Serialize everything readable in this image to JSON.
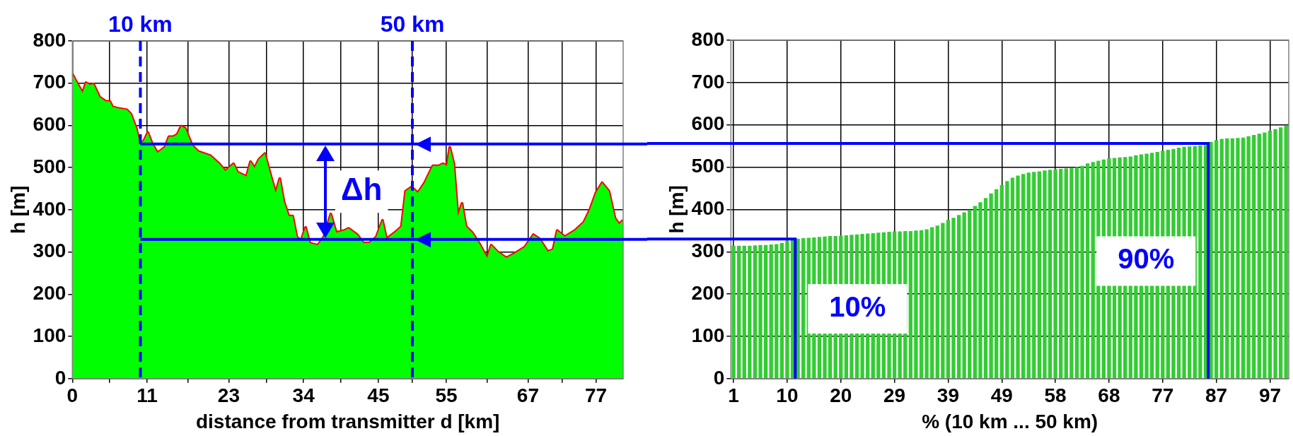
{
  "chart_data": [
    {
      "type": "area",
      "xlabel": "distance from transmitter d [km]",
      "ylabel": "h [m]",
      "x": [
        0,
        0.5,
        1.5,
        2,
        2.6,
        3.1,
        4,
        4.9,
        5.5,
        5.9,
        6.8,
        8,
        8.6,
        9.4,
        9.9,
        10.5,
        11.1,
        11.7,
        12.5,
        13.6,
        14.2,
        14.8,
        15.4,
        16,
        16.6,
        17.6,
        18.5,
        19.4,
        20.3,
        21.6,
        22.5,
        23.7,
        24.3,
        25.6,
        26.2,
        26.8,
        27.4,
        28.3,
        29.3,
        29.9,
        30.5,
        31.1,
        31.8,
        32.4,
        33,
        33.6,
        34.3,
        34.9,
        36.1,
        37,
        38,
        38.8,
        40,
        40.6,
        41.9,
        42.8,
        43.7,
        44.7,
        45.6,
        46.2,
        47.4,
        48.4,
        49,
        49.9,
        50.8,
        51.8,
        53,
        53.9,
        54.5,
        55.1,
        55.5,
        56.1,
        56.7,
        57.3,
        57.9,
        58.8,
        59.8,
        61,
        61.6,
        62.5,
        63.8,
        65,
        66.5,
        67.8,
        68.7,
        69.9,
        70.7,
        71.3,
        72.4,
        73.9,
        75.2,
        76.1,
        77,
        77.9,
        78.9,
        79.8,
        80.4,
        81
      ],
      "series": [
        {
          "type": "area",
          "color": "#00ff00",
          "values": [
            721,
            706,
            677,
            701,
            696,
            698,
            667,
            657,
            657,
            644,
            640,
            637,
            627,
            593,
            558,
            563,
            583,
            558,
            535,
            548,
            573,
            573,
            578,
            598,
            593,
            553,
            538,
            533,
            528,
            509,
            492,
            509,
            489,
            479,
            514,
            499,
            519,
            533,
            474,
            440,
            474,
            420,
            385,
            385,
            336,
            326,
            358,
            321,
            316,
            336,
            390,
            346,
            351,
            356,
            341,
            321,
            321,
            336,
            375,
            331,
            346,
            360,
            444,
            454,
            440,
            464,
            504,
            504,
            509,
            504,
            548,
            509,
            385,
            415,
            360,
            346,
            321,
            286,
            316,
            301,
            286,
            296,
            311,
            341,
            331,
            301,
            306,
            351,
            336,
            351,
            370,
            400,
            440,
            464,
            444,
            380,
            366,
            375
          ]
        },
        {
          "type": "line",
          "color": "#ff0000",
          "values": [
            721,
            706,
            677,
            701,
            696,
            698,
            667,
            657,
            657,
            644,
            640,
            637,
            627,
            593,
            558,
            563,
            583,
            558,
            535,
            548,
            573,
            573,
            578,
            598,
            593,
            553,
            538,
            533,
            528,
            509,
            492,
            509,
            489,
            479,
            514,
            499,
            519,
            533,
            474,
            440,
            474,
            420,
            385,
            385,
            336,
            326,
            358,
            321,
            316,
            336,
            390,
            346,
            351,
            356,
            341,
            321,
            321,
            336,
            375,
            331,
            346,
            360,
            444,
            454,
            440,
            464,
            504,
            504,
            509,
            504,
            548,
            509,
            385,
            415,
            360,
            346,
            321,
            286,
            316,
            301,
            286,
            296,
            311,
            341,
            331,
            301,
            306,
            351,
            336,
            351,
            370,
            400,
            440,
            464,
            444,
            380,
            366,
            375
          ]
        }
      ],
      "xlim": [
        0,
        81
      ],
      "xticks": [
        0,
        {
          "value": 5.5,
          "label": null
        },
        11,
        {
          "value": 17,
          "label": null
        },
        23,
        {
          "value": 28.5,
          "label": null
        },
        34,
        {
          "value": 39.5,
          "label": null
        },
        45,
        {
          "value": 50,
          "label": null
        },
        55,
        {
          "value": 61,
          "label": null
        },
        67,
        {
          "value": 72,
          "label": null
        },
        77
      ],
      "ylim": [
        0,
        800
      ],
      "yticks": [
        0,
        100,
        200,
        300,
        400,
        500,
        600,
        700,
        800
      ],
      "grid": true,
      "ref_lines": [
        {
          "axis": "x",
          "value": 10,
          "label": "10 km",
          "color": "#0000ff",
          "line_style": "dashed"
        },
        {
          "axis": "x",
          "value": 50,
          "label": "50 km",
          "color": "#0000ff",
          "line_style": "dashed"
        },
        {
          "axis": "y",
          "value": 556,
          "color": "#0000ff",
          "line_style": "solid"
        },
        {
          "axis": "y",
          "value": 330,
          "color": "#0000ff",
          "line_style": "solid"
        }
      ],
      "annotations": [
        "Δh"
      ]
    },
    {
      "type": "bar",
      "xlabel": "% (10 km ... 50 km)",
      "ylabel": "h [m]",
      "categories": [
        "1",
        null,
        null,
        null,
        null,
        null,
        null,
        null,
        null,
        null,
        "10",
        null,
        null,
        null,
        null,
        null,
        null,
        null,
        null,
        null,
        "20",
        null,
        null,
        null,
        null,
        null,
        null,
        null,
        null,
        null,
        "29",
        null,
        null,
        null,
        null,
        null,
        null,
        null,
        null,
        null,
        "39",
        null,
        null,
        null,
        null,
        null,
        null,
        null,
        null,
        null,
        "49",
        null,
        null,
        null,
        null,
        null,
        null,
        null,
        null,
        null,
        "58",
        null,
        null,
        null,
        null,
        null,
        null,
        null,
        null,
        null,
        "68",
        null,
        null,
        null,
        null,
        null,
        null,
        null,
        null,
        null,
        "77",
        null,
        null,
        null,
        null,
        null,
        null,
        null,
        null,
        null,
        "87",
        null,
        null,
        null,
        null,
        null,
        null,
        null,
        null,
        null,
        "97",
        null,
        null,
        null
      ],
      "values": [
        314,
        314,
        314,
        314,
        315,
        316,
        316,
        317,
        318,
        321,
        326,
        329,
        331,
        332,
        333,
        334,
        335,
        336,
        337,
        337,
        338,
        339,
        340,
        341,
        342,
        343,
        344,
        345,
        346,
        347,
        348,
        348,
        349,
        349,
        350,
        351,
        353,
        358,
        362,
        368,
        375,
        380,
        387,
        393,
        399,
        408,
        417,
        427,
        438,
        448,
        458,
        467,
        475,
        480,
        484,
        487,
        489,
        490,
        492,
        494,
        495,
        496,
        497,
        499,
        500,
        503,
        509,
        512,
        515,
        518,
        521,
        522,
        523,
        524,
        525,
        528,
        530,
        532,
        534,
        536,
        539,
        541,
        543,
        546,
        548,
        549,
        550,
        551,
        552,
        560,
        564,
        567,
        568,
        568,
        569,
        570,
        573,
        576,
        579,
        582,
        586,
        590,
        594,
        598
      ],
      "color": "#33cc33",
      "ylim": [
        0,
        800
      ],
      "yticks": [
        0,
        100,
        200,
        300,
        400,
        500,
        600,
        700,
        800
      ],
      "grid": true,
      "ref_lines": [
        {
          "axis": "y",
          "value": 330,
          "color": "#0000ff",
          "line_style": "solid"
        },
        {
          "axis": "y",
          "value": 556,
          "color": "#0000ff",
          "line_style": "solid"
        }
      ],
      "annotations": [
        "10%",
        "90%"
      ]
    }
  ]
}
